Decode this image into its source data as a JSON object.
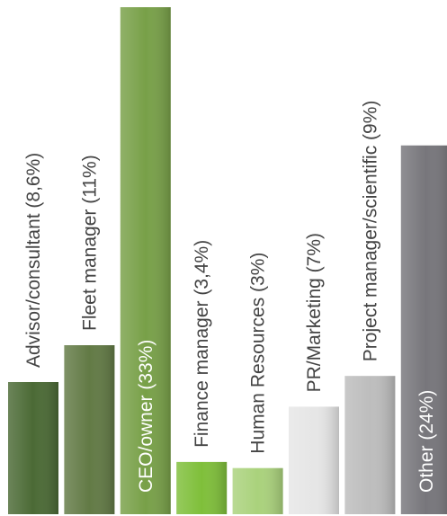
{
  "chart_data": {
    "type": "bar",
    "categories": [
      "Advisor/consultant (8,6%)",
      "Fleet manager (11%)",
      "CEO/owner (33%)",
      "Finance manager (3,4%)",
      "Human Resources (3%)",
      "PR/Marketing (7%)",
      "Project manager/scientific (9%)",
      "Other (24%)"
    ],
    "values": [
      8.6,
      11,
      33,
      3.4,
      3,
      7,
      9,
      24
    ],
    "colors": [
      "#4b6a35",
      "#627a45",
      "#78a048",
      "#7fbf3a",
      "#aad27c",
      "#e6e6e6",
      "#bdbdbd",
      "#77767b"
    ],
    "label_colors": [
      "#444444",
      "#444444",
      "#ffffff",
      "#444444",
      "#444444",
      "#444444",
      "#444444",
      "#ffffff"
    ],
    "ylim": [
      0,
      33
    ],
    "grid": false,
    "legend": "none"
  }
}
